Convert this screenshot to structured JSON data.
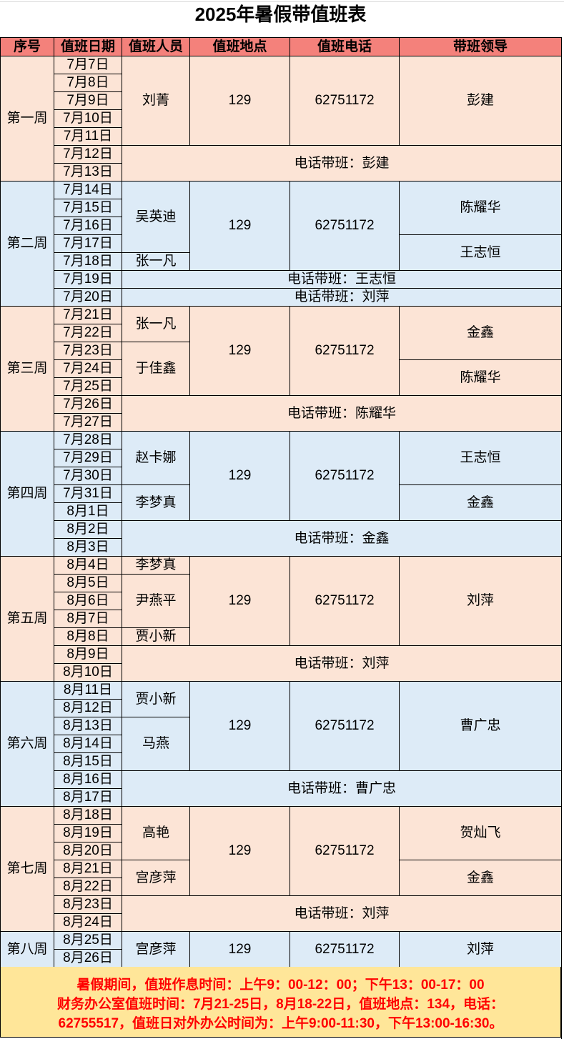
{
  "title": "2025年暑假带值班表",
  "colors": {
    "header": "#F4817B",
    "peach": "#FCE4D6",
    "blue": "#DDEBF7",
    "footer": "#FFE699",
    "footer_text": "#FF0000"
  },
  "headers": [
    "序号",
    "值班日期",
    "值班人员",
    "值班地点",
    "值班电话",
    "带班领导"
  ],
  "weeks": [
    {
      "label": "第一周",
      "color": "peach",
      "dates": [
        "7月7日",
        "7月8日",
        "7月9日",
        "7月10日",
        "7月11日",
        "7月12日",
        "7月13日"
      ],
      "persons": [
        {
          "name": "刘菁",
          "span": 5
        }
      ],
      "location": "129",
      "phone": "62751172",
      "leaders": [
        {
          "name": "彭建",
          "span": 5
        }
      ],
      "phone_duty": [
        {
          "text": "电话带班：彭建",
          "span": 2
        }
      ]
    },
    {
      "label": "第二周",
      "color": "blue",
      "dates": [
        "7月14日",
        "7月15日",
        "7月16日",
        "7月17日",
        "7月18日",
        "7月19日",
        "7月20日"
      ],
      "persons": [
        {
          "name": "吴英迪",
          "span": 4
        },
        {
          "name": "张一凡",
          "span": 1
        }
      ],
      "location": "129",
      "phone": "62751172",
      "leaders": [
        {
          "name": "陈耀华",
          "span": 3
        },
        {
          "name": "王志恒",
          "span": 2
        }
      ],
      "phone_duty": [
        {
          "text": "电话带班：王志恒",
          "span": 1
        },
        {
          "text": "电话带班：刘萍",
          "span": 1
        }
      ]
    },
    {
      "label": "第三周",
      "color": "peach",
      "dates": [
        "7月21日",
        "7月22日",
        "7月23日",
        "7月24日",
        "7月25日",
        "7月26日",
        "7月27日"
      ],
      "persons": [
        {
          "name": "张一凡",
          "span": 2
        },
        {
          "name": "于佳鑫",
          "span": 3
        }
      ],
      "location": "129",
      "phone": "62751172",
      "leaders": [
        {
          "name": "金鑫",
          "span": 3
        },
        {
          "name": "陈耀华",
          "span": 2
        }
      ],
      "phone_duty": [
        {
          "text": "电话带班：陈耀华",
          "span": 2
        }
      ]
    },
    {
      "label": "第四周",
      "color": "blue",
      "dates": [
        "7月28日",
        "7月29日",
        "7月30日",
        "7月31日",
        "8月1日",
        "8月2日",
        "8月3日"
      ],
      "persons": [
        {
          "name": "赵卡娜",
          "span": 3
        },
        {
          "name": "李梦真",
          "span": 2
        }
      ],
      "location": "129",
      "phone": "62751172",
      "leaders": [
        {
          "name": "王志恒",
          "span": 3
        },
        {
          "name": "金鑫",
          "span": 2
        }
      ],
      "phone_duty": [
        {
          "text": "电话带班：金鑫",
          "span": 2
        }
      ]
    },
    {
      "label": "第五周",
      "color": "peach",
      "dates": [
        "8月4日",
        "8月5日",
        "8月6日",
        "8月7日",
        "8月8日",
        "8月9日",
        "8月10日"
      ],
      "persons": [
        {
          "name": "李梦真",
          "span": 1
        },
        {
          "name": "尹燕平",
          "span": 3
        },
        {
          "name": "贾小新",
          "span": 1
        }
      ],
      "location": "129",
      "phone": "62751172",
      "leaders": [
        {
          "name": "刘萍",
          "span": 5
        }
      ],
      "phone_duty": [
        {
          "text": "电话带班：刘萍",
          "span": 2
        }
      ]
    },
    {
      "label": "第六周",
      "color": "blue",
      "dates": [
        "8月11日",
        "8月12日",
        "8月13日",
        "8月14日",
        "8月15日",
        "8月16日",
        "8月17日"
      ],
      "persons": [
        {
          "name": "贾小新",
          "span": 2
        },
        {
          "name": "马燕",
          "span": 3
        }
      ],
      "location": "129",
      "phone": "62751172",
      "leaders": [
        {
          "name": "曹广忠",
          "span": 5
        }
      ],
      "phone_duty": [
        {
          "text": "电话带班：曹广忠",
          "span": 2
        }
      ]
    },
    {
      "label": "第七周",
      "color": "peach",
      "dates": [
        "8月18日",
        "8月19日",
        "8月20日",
        "8月21日",
        "8月22日",
        "8月23日",
        "8月24日"
      ],
      "persons": [
        {
          "name": "高艳",
          "span": 3
        },
        {
          "name": "宫彦萍",
          "span": 2
        }
      ],
      "location": "129",
      "phone": "62751172",
      "leaders": [
        {
          "name": "贺灿飞",
          "span": 3
        },
        {
          "name": "金鑫",
          "span": 2
        }
      ],
      "phone_duty": [
        {
          "text": "电话带班：刘萍",
          "span": 2
        }
      ]
    },
    {
      "label": "第八周",
      "color": "blue",
      "dates": [
        "8月25日",
        "8月26日"
      ],
      "persons": [
        {
          "name": "宫彦萍",
          "span": 2
        }
      ],
      "location": "129",
      "phone": "62751172",
      "leaders": [
        {
          "name": "刘萍",
          "span": 2
        }
      ],
      "phone_duty": []
    }
  ],
  "footer": {
    "line1": "暑假期间，值班作息时间：上午9：00-12：00；下午13：00-17：00",
    "line2": "财务办公室值班时间：7月21-25日，8月18-22日，值班地点：134，电话：",
    "line3": "62755517，值班日对外办公时间为：上午9:00-11:30，下午13:00-16:30。"
  }
}
